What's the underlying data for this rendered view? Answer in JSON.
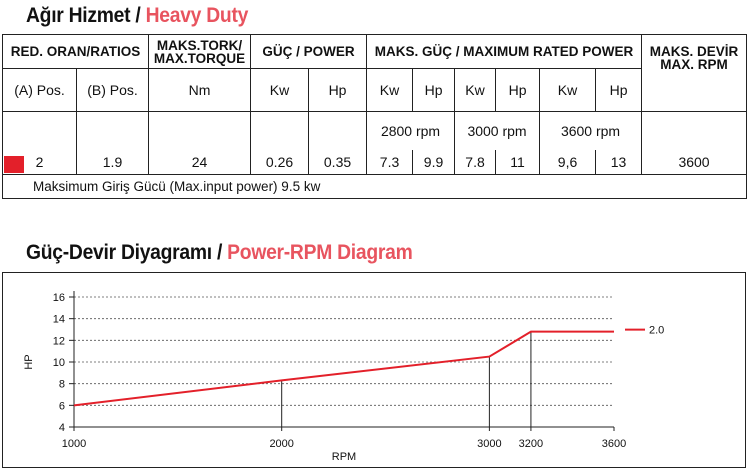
{
  "titles": {
    "spec_tr": "Ağır Hizmet /",
    "spec_en": "Heavy Duty",
    "diagram_tr": "Güç-Devir Diyagramı /",
    "diagram_en": "Power-RPM Diagram"
  },
  "table": {
    "headers": {
      "ratio": "RED. ORAN/RATIOS",
      "torque_l1": "MAKS.TORK/",
      "torque_l2": "MAX.TORQUE",
      "power": "GÜÇ / POWER",
      "max_power": "MAKS.  GÜÇ / MAXIMUM RATED POWER",
      "max_rpm_l1": "MAKS. DEVİR",
      "max_rpm_l2": "MAX. RPM"
    },
    "subheaders": {
      "pos_a": "(A) Pos.",
      "pos_b": "(B) Pos.",
      "torque_unit": "Nm",
      "kw": "Kw",
      "hp": "Hp"
    },
    "rpm_labels": [
      "2800 rpm",
      "3000 rpm",
      "3600 rpm"
    ],
    "row": {
      "pos_a": "2",
      "pos_b": "1.9",
      "torque": "24",
      "power_kw": "0.26",
      "power_hp": "0.35",
      "kw_2800": "7.3",
      "hp_2800": "9.9",
      "kw_3000": "7.8",
      "hp_3000": "11",
      "kw_3600": "9,6",
      "hp_3600": "13",
      "max_rpm": "3600"
    },
    "note": "Maksimum Giriş Gücü (Max.input power) 9.5 kw",
    "marker_color": "#e3202a"
  },
  "chart_data": {
    "type": "line",
    "title": "Power-RPM Diagram",
    "xlabel": "RPM",
    "ylabel": "HP",
    "xlim": [
      1000,
      3600
    ],
    "ylim": [
      4,
      16
    ],
    "x_ticks": [
      1000,
      2000,
      3000,
      3200,
      3600
    ],
    "y_ticks": [
      4,
      6,
      8,
      10,
      12,
      14,
      16
    ],
    "grid": "horizontal-dashed",
    "legend_position": "right",
    "series": [
      {
        "name": "2.0",
        "color": "#e3202a",
        "points": [
          [
            1000,
            6.0
          ],
          [
            2000,
            8.3
          ],
          [
            3000,
            10.5
          ],
          [
            3200,
            12.8
          ],
          [
            3600,
            12.8
          ]
        ]
      }
    ],
    "drop_lines_x": [
      2000,
      3000,
      3200
    ]
  }
}
